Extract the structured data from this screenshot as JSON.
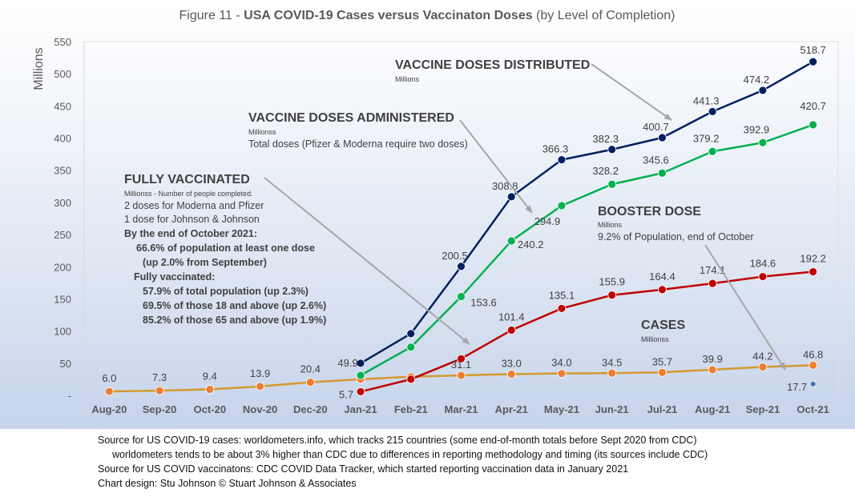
{
  "chart_data": {
    "type": "line",
    "title": {
      "prefix": "Figure 11 - ",
      "main": "USA COVID-19 Cases versus Vaccinaton Doses",
      "suffix": " (by Level of Completion)"
    },
    "ylabel": "Millions",
    "ylim": [
      0,
      550
    ],
    "y_ticks": [
      "-",
      "50",
      "100",
      "150",
      "200",
      "250",
      "300",
      "350",
      "400",
      "450",
      "500",
      "550"
    ],
    "categories": [
      "Aug-20",
      "Sep-20",
      "Oct-20",
      "Nov-20",
      "Dec-20",
      "Jan-21",
      "Feb-21",
      "Mar-21",
      "Apr-21",
      "May-21",
      "Jun-21",
      "Jul-21",
      "Aug-21",
      "Sep-21",
      "Oct-21"
    ],
    "series": [
      {
        "id": "cases",
        "color": "#d39a2c",
        "marker_color": "#ed7d31",
        "values": [
          6.0,
          7.3,
          9.4,
          13.9,
          20.4,
          25.0,
          29.0,
          31.1,
          33.0,
          34.0,
          34.5,
          35.7,
          39.9,
          44.2,
          46.8
        ],
        "labels": [
          "6.0",
          "7.3",
          "9.4",
          "13.9",
          "20.4",
          "",
          "",
          "31.1",
          "33.0",
          "34.0",
          "34.5",
          "35.7",
          "39.9",
          "44.2",
          "46.8"
        ]
      },
      {
        "id": "doses-distributed",
        "color": "#002060",
        "marker_color": "#002060",
        "values": [
          null,
          null,
          null,
          null,
          null,
          49.9,
          96,
          200.5,
          308.8,
          366.3,
          382.3,
          400.7,
          441.3,
          474.2,
          518.7
        ],
        "labels": [
          "",
          "",
          "",
          "",
          "",
          "49.9",
          "",
          "200.5",
          "308.8",
          "366.3",
          "382.3",
          "400.7",
          "441.3",
          "474.2",
          "518.7"
        ]
      },
      {
        "id": "doses-administered",
        "color": "#00b050",
        "marker_color": "#00b050",
        "values": [
          null,
          null,
          null,
          null,
          null,
          31.1,
          75,
          153.6,
          240.2,
          294.9,
          328.2,
          345.6,
          379.2,
          392.9,
          420.7
        ],
        "labels": [
          "",
          "",
          "",
          "",
          "",
          "",
          "",
          "153.6",
          "240.2",
          "294.9",
          "328.2",
          "345.6",
          "379.2",
          "392.9",
          "420.7"
        ]
      },
      {
        "id": "fully-vaccinated",
        "color": "#c00000",
        "marker_color": "#c00000",
        "values": [
          null,
          null,
          null,
          null,
          null,
          5.7,
          25,
          57,
          101.4,
          135.1,
          155.9,
          164.4,
          174.1,
          184.6,
          192.2
        ],
        "labels": [
          "",
          "",
          "",
          "",
          "",
          "5.7",
          "",
          "",
          "101.4",
          "135.1",
          "155.9",
          "164.4",
          "174.1",
          "184.6",
          "192.2"
        ]
      },
      {
        "id": "booster-dose",
        "color": "#4472c4",
        "marker_color": "#4472c4",
        "values": [
          null,
          null,
          null,
          null,
          null,
          null,
          null,
          null,
          null,
          null,
          null,
          null,
          null,
          null,
          17.7
        ],
        "labels": [
          "",
          "",
          "",
          "",
          "",
          "",
          "",
          "",
          "",
          "",
          "",
          "",
          "",
          "",
          "17.7"
        ]
      }
    ],
    "annotations": {
      "distributed": {
        "title": "VACCINE DOSES DISTRIBUTED",
        "unit": "Millions"
      },
      "administered": {
        "title": "VACCINE DOSES ADMINISTERED",
        "unit": "Millionss",
        "note": "Total doses (Pfizer & Moderna require two doses)"
      },
      "fully": {
        "title": "FULLY VACCINATED",
        "unit": "Millionss - Number of people completed.",
        "line1": "2 doses for Moderna and Pfizer",
        "line2": "1 dose for Johnson & Johnson",
        "bold1": "By the end of October 2021:",
        "bold2": "66.6% of population at least one dose",
        "bold3": "(up 2.0% from September)",
        "bold4": "Fully vaccinated:",
        "bold5": "57.9% of total population (up 2.3%)",
        "bold6": "69.5% of those 18 and above (up 2.6%)",
        "bold7": "85.2% of those 65 and above (up 1.9%)"
      },
      "booster": {
        "title": "BOOSTER DOSE",
        "unit": "Millions",
        "note": "9.2% of Population, end of October"
      },
      "cases": {
        "title": "CASES",
        "unit": "Millionss"
      }
    },
    "grid": false
  },
  "colors": {
    "title": "#595959",
    "axis_text": "#595959",
    "annotation_text": "#404040",
    "arrow": "#a6a6a6"
  },
  "source_notes": [
    "Source for US COVID-19 cases: worldometers.info, which tracks 215 countries  (some end-of-month totals before Sept 2020 from CDC)",
    "worldometers tends to be about 3% higher than CDC due to differences in reporting methodology and timing (its sources include CDC)",
    "Source for US COVID vaccinatons: CDC COVID Data Tracker, which started reporting vaccination data in January 2021",
    "Chart design: Stu Johnson © Stuart Johnson & Associates"
  ]
}
